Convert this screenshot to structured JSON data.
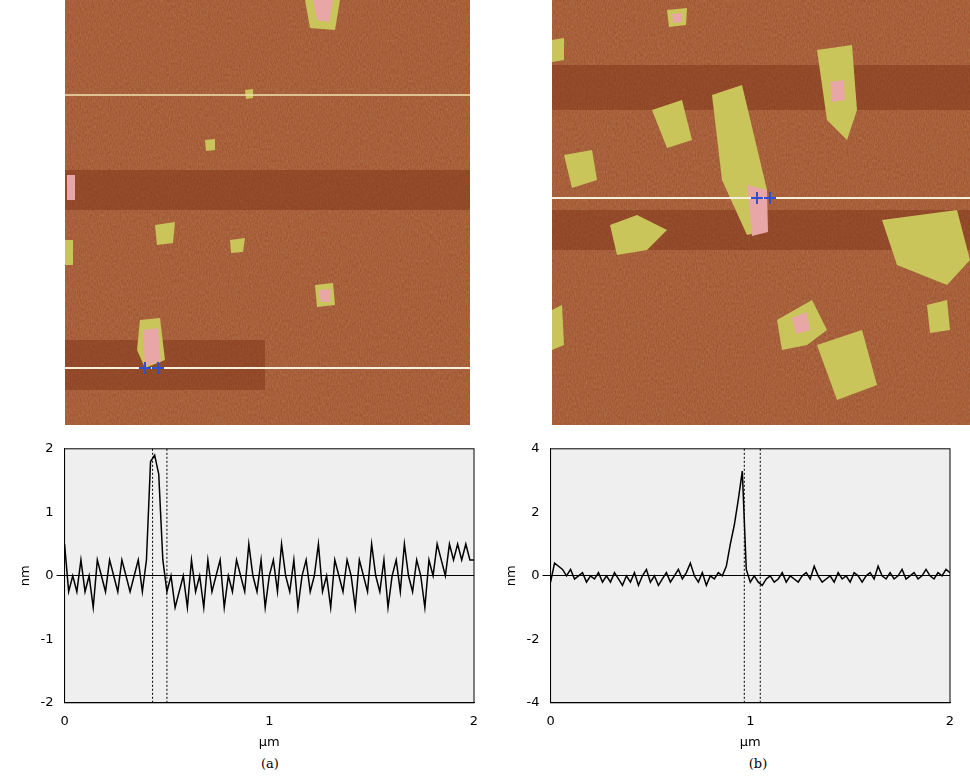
{
  "chart_data": [
    {
      "type": "line",
      "panel": "(a)",
      "x_label": "µm",
      "y_label": "nm",
      "color": "#000000",
      "xlim": [
        0,
        2
      ],
      "xticks": [
        0,
        1,
        2
      ],
      "ylim": [
        -2,
        2
      ],
      "yticks": [
        -2,
        -1,
        0,
        1,
        2
      ],
      "cursors": [
        0.43,
        0.5
      ],
      "x": [
        0,
        0.02,
        0.04,
        0.06,
        0.08,
        0.1,
        0.12,
        0.14,
        0.16,
        0.18,
        0.2,
        0.22,
        0.24,
        0.26,
        0.28,
        0.3,
        0.32,
        0.34,
        0.36,
        0.38,
        0.4,
        0.42,
        0.44,
        0.46,
        0.48,
        0.5,
        0.52,
        0.54,
        0.56,
        0.58,
        0.6,
        0.62,
        0.64,
        0.66,
        0.68,
        0.7,
        0.72,
        0.74,
        0.76,
        0.78,
        0.8,
        0.82,
        0.84,
        0.86,
        0.88,
        0.9,
        0.92,
        0.94,
        0.96,
        0.98,
        1,
        1.02,
        1.04,
        1.06,
        1.08,
        1.1,
        1.12,
        1.14,
        1.16,
        1.18,
        1.2,
        1.22,
        1.24,
        1.26,
        1.28,
        1.3,
        1.32,
        1.34,
        1.36,
        1.38,
        1.4,
        1.42,
        1.44,
        1.46,
        1.48,
        1.5,
        1.52,
        1.54,
        1.56,
        1.58,
        1.6,
        1.62,
        1.64,
        1.66,
        1.68,
        1.7,
        1.72,
        1.74,
        1.76,
        1.78,
        1.8,
        1.82,
        1.84,
        1.86,
        1.88,
        1.9,
        1.92,
        1.94,
        1.96,
        1.98,
        2
      ],
      "values": [
        0.5,
        -0.25,
        0,
        -0.25,
        0.25,
        -0.25,
        0,
        -0.5,
        0.25,
        0,
        -0.25,
        0.25,
        0,
        -0.25,
        0.25,
        0,
        -0.25,
        0,
        0.25,
        -0.25,
        0.25,
        1.8,
        1.9,
        1.6,
        0.25,
        -0.25,
        0,
        -0.5,
        -0.25,
        0,
        -0.5,
        0.25,
        -0.25,
        0,
        -0.5,
        0.25,
        -0.25,
        0,
        0.25,
        -0.5,
        0,
        -0.25,
        0.25,
        0,
        -0.25,
        0.5,
        0,
        -0.25,
        0.25,
        -0.5,
        0,
        0.25,
        -0.25,
        0.5,
        0,
        -0.25,
        0.25,
        -0.5,
        0,
        0.25,
        -0.25,
        0,
        0.5,
        -0.25,
        0,
        -0.5,
        0.25,
        0,
        -0.25,
        0.25,
        0,
        -0.5,
        0.25,
        0,
        -0.25,
        0.5,
        0,
        -0.25,
        0.25,
        -0.5,
        0,
        0.25,
        -0.25,
        0.5,
        0,
        -0.25,
        0.25,
        0,
        -0.5,
        0.25,
        0,
        0.5,
        0.25,
        0,
        0.5,
        0.25,
        0.5,
        0.25,
        0.5,
        0.25,
        0.25
      ]
    },
    {
      "type": "line",
      "panel": "(b)",
      "x_label": "µm",
      "y_label": "nm",
      "color": "#000000",
      "xlim": [
        0,
        2
      ],
      "xticks": [
        0,
        1,
        2
      ],
      "ylim": [
        -4,
        4
      ],
      "yticks": [
        -4,
        -2,
        0,
        2,
        4
      ],
      "cursors": [
        0.97,
        1.05
      ],
      "x": [
        0,
        0.02,
        0.04,
        0.06,
        0.08,
        0.1,
        0.12,
        0.14,
        0.16,
        0.18,
        0.2,
        0.22,
        0.24,
        0.26,
        0.28,
        0.3,
        0.32,
        0.34,
        0.36,
        0.38,
        0.4,
        0.42,
        0.44,
        0.46,
        0.48,
        0.5,
        0.52,
        0.54,
        0.56,
        0.58,
        0.6,
        0.62,
        0.64,
        0.66,
        0.68,
        0.7,
        0.72,
        0.74,
        0.76,
        0.78,
        0.8,
        0.82,
        0.84,
        0.86,
        0.88,
        0.9,
        0.92,
        0.94,
        0.96,
        0.98,
        1,
        1.02,
        1.04,
        1.06,
        1.08,
        1.1,
        1.12,
        1.14,
        1.16,
        1.18,
        1.2,
        1.22,
        1.24,
        1.26,
        1.28,
        1.3,
        1.32,
        1.34,
        1.36,
        1.38,
        1.4,
        1.42,
        1.44,
        1.46,
        1.48,
        1.5,
        1.52,
        1.54,
        1.56,
        1.58,
        1.6,
        1.62,
        1.64,
        1.66,
        1.68,
        1.7,
        1.72,
        1.74,
        1.76,
        1.78,
        1.8,
        1.82,
        1.84,
        1.86,
        1.88,
        1.9,
        1.92,
        1.94,
        1.96,
        1.98,
        2
      ],
      "values": [
        -0.2,
        0.4,
        0.3,
        0.2,
        0,
        0.2,
        -0.1,
        0,
        0.1,
        -0.2,
        0,
        -0.1,
        0.1,
        -0.2,
        0,
        -0.2,
        0.1,
        -0.1,
        -0.3,
        0,
        -0.2,
        0.1,
        -0.3,
        0,
        0.2,
        -0.2,
        0,
        -0.3,
        -0.1,
        0.1,
        -0.2,
        0,
        0.2,
        -0.1,
        0.1,
        0.4,
        0,
        -0.2,
        0.1,
        -0.3,
        0,
        -0.1,
        0.1,
        0,
        0.3,
        1.0,
        1.6,
        2.4,
        3.3,
        0.2,
        -0.2,
        0,
        -0.2,
        -0.3,
        -0.1,
        0,
        -0.2,
        -0.1,
        0.1,
        -0.2,
        0,
        -0.1,
        -0.2,
        0,
        0.1,
        -0.1,
        0.3,
        0,
        -0.2,
        -0.1,
        0,
        -0.2,
        0.1,
        -0.1,
        0,
        -0.2,
        0.1,
        0,
        -0.2,
        0,
        0.1,
        -0.1,
        0.3,
        0,
        -0.1,
        0.1,
        -0.1,
        0,
        0.2,
        -0.1,
        0,
        0.1,
        -0.1,
        0,
        0.2,
        0,
        -0.1,
        0.1,
        0,
        0.2,
        0.1
      ]
    }
  ]
}
